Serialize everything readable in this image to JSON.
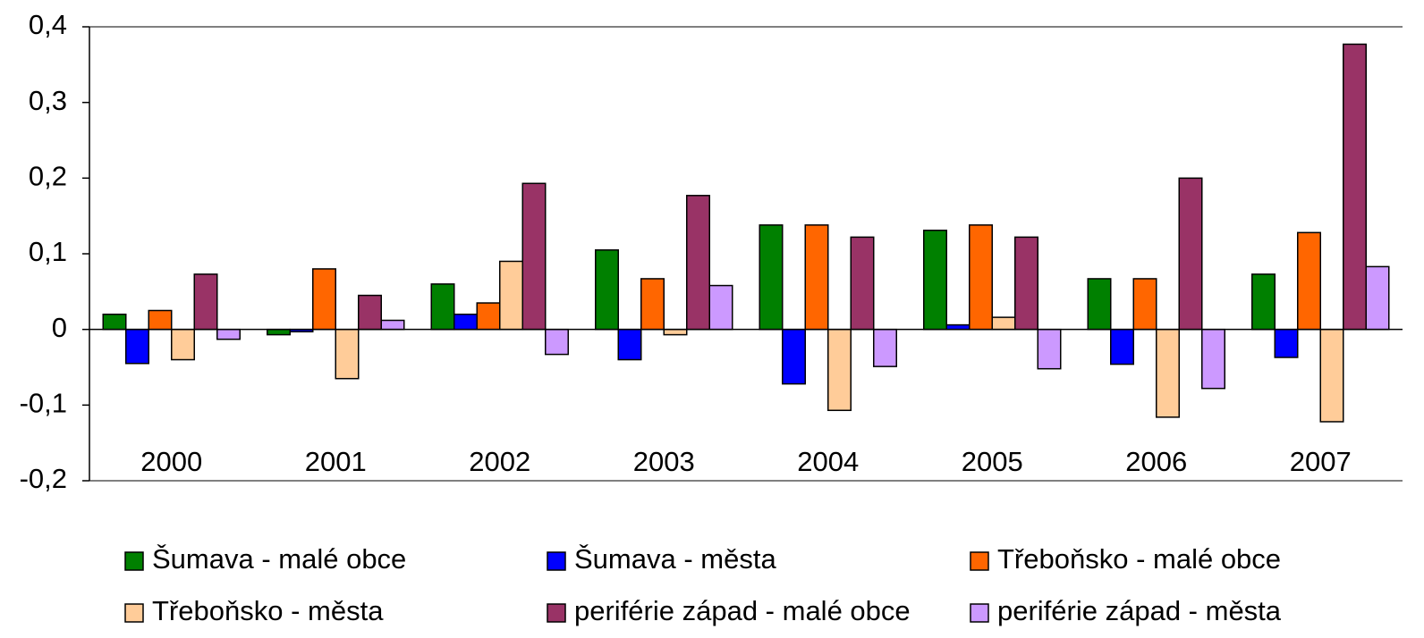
{
  "chart_data": {
    "type": "bar",
    "categories": [
      "2000",
      "2001",
      "2002",
      "2003",
      "2004",
      "2005",
      "2006",
      "2007"
    ],
    "series": [
      {
        "name": "Šumava - malé obce",
        "color": "#008000",
        "values": [
          0.02,
          -0.007,
          0.06,
          0.105,
          0.138,
          0.131,
          0.067,
          0.073
        ]
      },
      {
        "name": "Šumava - města",
        "color": "#0000ff",
        "values": [
          -0.045,
          -0.003,
          0.02,
          -0.04,
          -0.072,
          0.006,
          -0.046,
          -0.037
        ]
      },
      {
        "name": "Třeboňsko - malé obce",
        "color": "#ff6600",
        "values": [
          0.025,
          0.08,
          0.035,
          0.067,
          0.138,
          0.138,
          0.067,
          0.128
        ]
      },
      {
        "name": "Třeboňsko - města",
        "color": "#ffcc99",
        "values": [
          -0.04,
          -0.065,
          0.09,
          -0.007,
          -0.107,
          0.016,
          -0.116,
          -0.122
        ]
      },
      {
        "name": "periférie západ - malé obce",
        "color": "#993366",
        "values": [
          0.073,
          0.045,
          0.193,
          0.177,
          0.122,
          0.122,
          0.2,
          0.377
        ]
      },
      {
        "name": "periférie západ - města",
        "color": "#cc99ff",
        "values": [
          -0.013,
          0.012,
          -0.033,
          0.058,
          -0.049,
          -0.052,
          -0.078,
          0.083
        ]
      }
    ],
    "ylim": [
      -0.2,
      0.4
    ],
    "yticks": [
      {
        "value": -0.2,
        "label": "-0,2"
      },
      {
        "value": -0.1,
        "label": "-0,1"
      },
      0,
      {
        "value": 0.1,
        "label": "0,1"
      },
      {
        "value": 0.2,
        "label": "0,2"
      },
      {
        "value": 0.3,
        "label": "0,3"
      },
      {
        "value": 0.4,
        "label": "0,4"
      }
    ],
    "legend": "bottom"
  }
}
